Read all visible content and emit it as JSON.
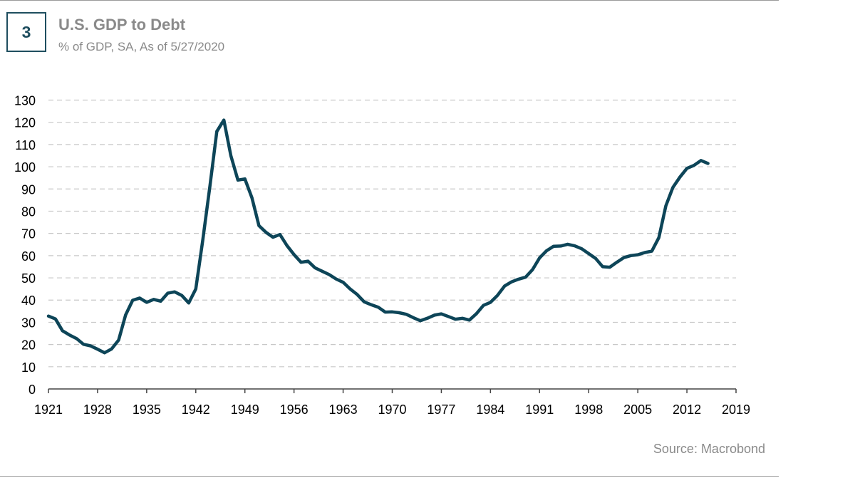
{
  "header": {
    "badge": "3",
    "title": "U.S. GDP to Debt",
    "subtitle": "% of GDP, SA, As of 5/27/2020"
  },
  "footer": {
    "source": "Source: Macrobond"
  },
  "colors": {
    "line": "#0d4558",
    "grid": "#c8c8c8",
    "badge": "#1f4e5f",
    "text": "#8a8a8a"
  },
  "chart_data": {
    "type": "line",
    "title": "U.S. GDP to Debt",
    "subtitle": "% of GDP, SA, As of 5/27/2020",
    "xlabel": "",
    "ylabel": "",
    "xlim": [
      1921,
      2019
    ],
    "ylim": [
      0,
      130
    ],
    "x_ticks": [
      1921,
      1928,
      1935,
      1942,
      1949,
      1956,
      1963,
      1970,
      1977,
      1984,
      1991,
      1998,
      2005,
      2012,
      2019
    ],
    "y_ticks": [
      0,
      10,
      20,
      30,
      40,
      50,
      60,
      70,
      80,
      90,
      100,
      110,
      120,
      130
    ],
    "grid": "horizontal dashed",
    "series": [
      {
        "x": [
          1921,
          1922,
          1923,
          1924,
          1925,
          1926,
          1927,
          1928,
          1929,
          1930,
          1931,
          1932,
          1933,
          1934,
          1935,
          1936,
          1937,
          1938,
          1939,
          1940,
          1941,
          1942,
          1943,
          1944,
          1945,
          1946,
          1947,
          1948,
          1949,
          1950,
          1951,
          1952,
          1953,
          1954,
          1955,
          1956,
          1957,
          1958,
          1959,
          1960,
          1961,
          1962,
          1963,
          1964,
          1965,
          1966,
          1967,
          1968,
          1969,
          1970,
          1971,
          1972,
          1973,
          1974,
          1975,
          1976,
          1977,
          1978,
          1979,
          1980,
          1981,
          1982,
          1983,
          1984,
          1985,
          1986,
          1987,
          1988,
          1989,
          1990,
          1991,
          1992,
          1993,
          1994,
          1995,
          1996,
          1997,
          1998,
          1999,
          2000,
          2001,
          2002,
          2003,
          2004,
          2005,
          2006,
          2007,
          2008,
          2009,
          2010,
          2011,
          2012,
          2013,
          2014,
          2015
        ],
        "values": [
          32.8,
          31.5,
          26.2,
          24.3,
          22.7,
          20.1,
          19.4,
          17.9,
          16.3,
          18.0,
          22.0,
          33.3,
          39.9,
          40.9,
          39.0,
          40.3,
          39.5,
          43.1,
          43.7,
          42.1,
          38.7,
          45.0,
          67.0,
          91.0,
          115.9,
          121.0,
          105.0,
          94.0,
          94.5,
          86.0,
          73.5,
          70.5,
          68.3,
          69.5,
          64.5,
          60.5,
          57.0,
          57.5,
          54.5,
          53.0,
          51.5,
          49.5,
          48.0,
          45.0,
          42.5,
          39.2,
          37.9,
          36.8,
          34.6,
          34.7,
          34.3,
          33.6,
          32.1,
          30.7,
          31.8,
          33.2,
          33.8,
          32.6,
          31.4,
          31.8,
          31.0,
          33.9,
          37.6,
          39.0,
          42.1,
          46.3,
          48.2,
          49.4,
          50.3,
          53.7,
          59.0,
          62.2,
          64.2,
          64.3,
          65.1,
          64.4,
          63.1,
          60.9,
          58.7,
          55.0,
          54.8,
          57.0,
          59.1,
          60.0,
          60.4,
          61.4,
          62.0,
          68.1,
          82.4,
          90.7,
          95.3,
          99.3,
          100.6,
          102.8,
          101.5
        ]
      }
    ]
  }
}
